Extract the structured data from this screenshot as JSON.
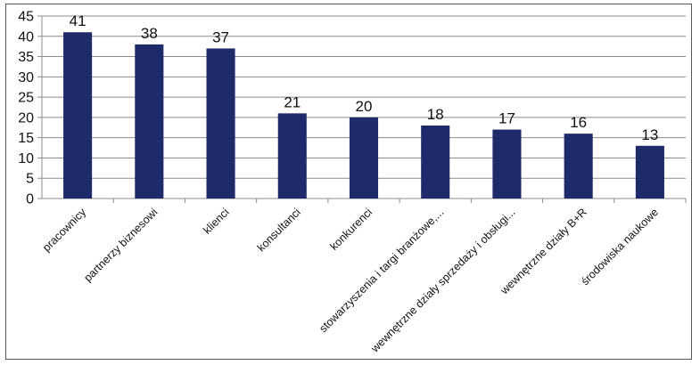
{
  "chart_data": {
    "type": "bar",
    "categories": [
      "pracownicy",
      "partnerzy biznesowi",
      "klienci",
      "konsultanci",
      "konkurenci",
      "stowarzyszenia i targi branżowe,...",
      "wewnętrzne działy sprzedaży i obsługi...",
      "wewnętrzne działy B+R",
      "środowiska naukowe"
    ],
    "values": [
      41,
      38,
      37,
      21,
      20,
      18,
      17,
      16,
      13
    ],
    "ylim": [
      0,
      45
    ],
    "yticks": [
      0,
      5,
      10,
      15,
      20,
      25,
      30,
      35,
      40,
      45
    ],
    "grid": true,
    "legend": "none",
    "bar_color": "#1f2a6b",
    "grid_color": "#8c8c8c",
    "axis_color": "#8c8c8c"
  }
}
